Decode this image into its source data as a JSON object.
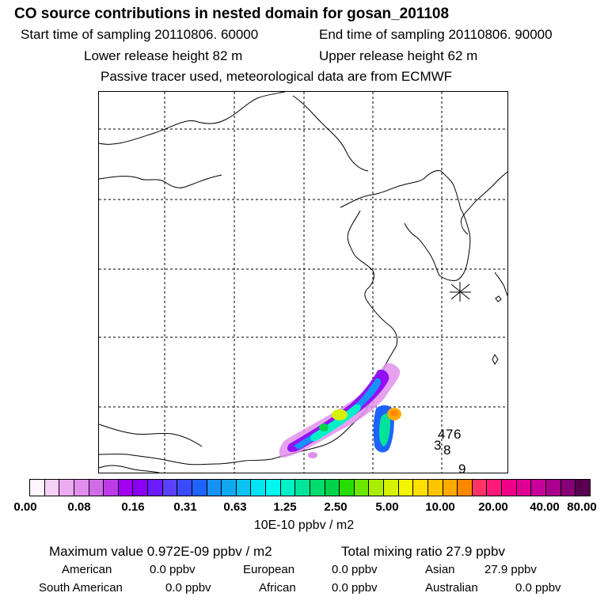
{
  "header": {
    "title": "CO  source contributions in nested domain for gosan_201108",
    "start_label": "Start time of sampling 20110806. 60000",
    "end_label": "End time of sampling 20110806. 90000",
    "lower_label": "Lower release height   82 m",
    "upper_label": "Upper release height   62 m",
    "info": "Passive tracer used, meteorological data are from ECMWF"
  },
  "chart_data": {
    "type": "heatmap",
    "title": "CO  source contributions in nested domain for gosan_201108",
    "colorbar": {
      "unit_label": "10E-10 ppbv / m2",
      "tick_labels": [
        "0.00",
        "0.08",
        "0.16",
        "0.31",
        "0.63",
        "1.25",
        "2.50",
        "5.00",
        "10.00",
        "20.00",
        "40.00",
        "80.00"
      ],
      "tick_values": [
        0.0,
        0.08,
        0.16,
        0.31,
        0.63,
        1.25,
        2.5,
        5.0,
        10.0,
        20.0,
        40.0,
        80.0
      ],
      "colors": [
        "#fff5ff",
        "#f7d0f7",
        "#ecabf0",
        "#e090ec",
        "#d06de6",
        "#bd3ce8",
        "#a200f2",
        "#8a00f6",
        "#6a1cff",
        "#5a40ff",
        "#3a4bff",
        "#1f63ff",
        "#1792f7",
        "#10a8ee",
        "#0ac3f0",
        "#00e4f4",
        "#00f8f0",
        "#00f0c8",
        "#00e49a",
        "#00dc6c",
        "#00d24a",
        "#27dc00",
        "#6ee500",
        "#aaed00",
        "#d6f200",
        "#f5f500",
        "#ffe000",
        "#ffc400",
        "#ffaa00",
        "#ff8800",
        "#ff3366",
        "#ff1a7a",
        "#f0008a",
        "#e00094",
        "#c8009a",
        "#a8008c",
        "#880078",
        "#5a0050"
      ]
    },
    "station_labels": [
      "4",
      "7",
      "6",
      "3",
      "8",
      "9"
    ],
    "gridlines": true
  },
  "footer": {
    "max_label": "Maximum value  0.972E-09 ppbv / m2",
    "total_label": "Total mixing ratio       27.9 ppbv",
    "american": "American",
    "american_val": "0.0 ppbv",
    "european": "European",
    "european_val": "0.0 ppbv",
    "asian": "Asian",
    "asian_val": "27.9 ppbv",
    "south_american": "South American",
    "south_american_val": "0.0 ppbv",
    "african": "African",
    "african_val": "0.0 ppbv",
    "australian": "Australian",
    "australian_val": "0.0 ppbv"
  }
}
